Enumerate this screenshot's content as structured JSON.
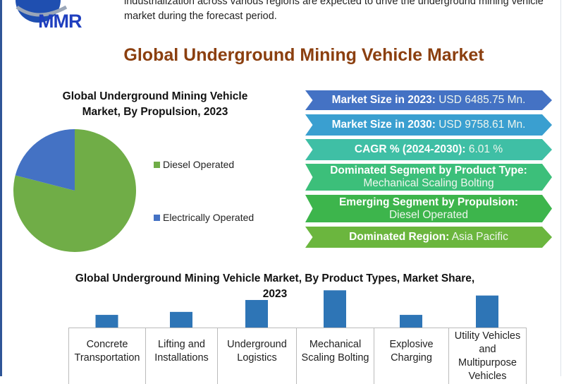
{
  "logo": {
    "text": "MMR"
  },
  "intro_text": "industrialization across various regions are expected to drive the underground mining vehicle market during the forecast period.",
  "title": "Global Underground Mining Vehicle Market",
  "stats": [
    {
      "label": "Market Size in 2023:",
      "value": "USD 6485.75 Mn.",
      "color": "#4472c4"
    },
    {
      "label": "Market Size in 2030:",
      "value": "USD 9758.61 Mn.",
      "color": "#3a9fd0"
    },
    {
      "label": "CAGR % (2024-2030):",
      "value": "6.01 %",
      "color": "#3fbfa5"
    },
    {
      "label": "Dominated Segment by Product Type:",
      "value": "Mechanical Scaling Bolting",
      "color": "#3cbf7a"
    },
    {
      "label": "Emerging Segment by Propulsion:",
      "value": "Diesel Operated",
      "color": "#3db54c"
    },
    {
      "label": "Dominated Region:",
      "value": "Asia Pacific",
      "color": "#6bb63e"
    }
  ],
  "chart_data": [
    {
      "type": "pie",
      "title": "Global Underground Mining Vehicle Market, By Propulsion, 2023",
      "categories": [
        "Diesel Operated",
        "Electrically Operated"
      ],
      "values": [
        79,
        21
      ],
      "colors": [
        "#70ad47",
        "#4472c4"
      ],
      "legend": "right"
    },
    {
      "type": "bar",
      "title": "Global Underground Mining Vehicle Market, By Product Types, Market Share,  2023",
      "categories": [
        "Concrete Transportation",
        "Lifting and Installations",
        "Underground Logistics",
        "Mechanical Scaling Bolting",
        "Explosive Charging",
        "Utility Vehicles and Multipurpose Vehicles"
      ],
      "values": [
        17,
        21,
        37,
        50,
        17,
        43
      ],
      "color": "#2e75b6",
      "grid": false
    }
  ]
}
